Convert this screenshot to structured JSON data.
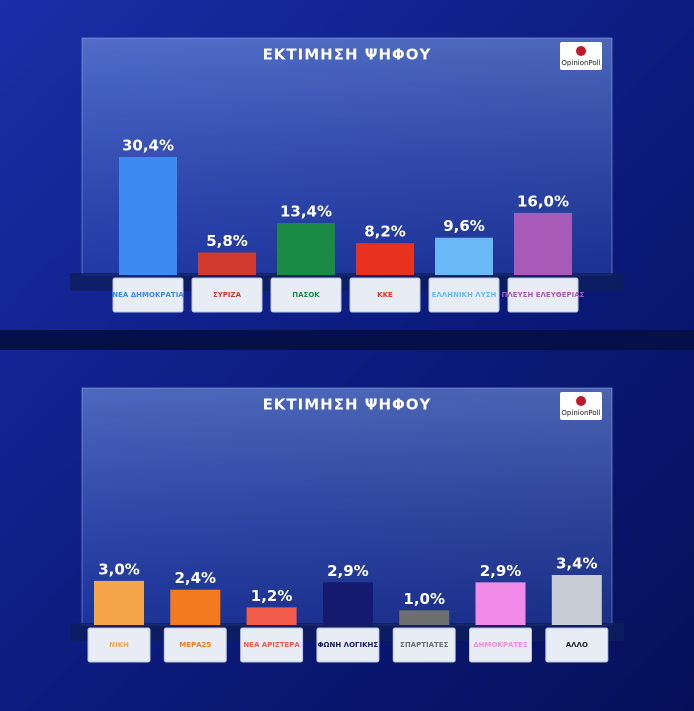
{
  "chart_data": [
    {
      "type": "bar",
      "title": "ΕΚΤΙΜΗΣΗ ΨΗΦΟΥ",
      "source": "OpinionPoll",
      "categories": [
        "ΝΕΑ ΔΗΜΟΚΡΑΤΙΑ",
        "ΣΥΡΙΖΑ",
        "ΠΑΣΟΚ",
        "ΚΚΕ",
        "ΕΛΛΗΝΙΚΗ ΛΥΣΗ",
        "ΠΛΕΥΣΗ ΕΛΕΥΘΕΡΙΑΣ"
      ],
      "values": [
        30.4,
        5.8,
        13.4,
        8.2,
        9.6,
        16.0
      ],
      "value_labels": [
        "30,4%",
        "5,8%",
        "13,4%",
        "8,2%",
        "9,6%",
        "16,0%"
      ],
      "colors": [
        "#3d8bf2",
        "#d23a2e",
        "#1a8a45",
        "#e8321f",
        "#6ab8f5",
        "#a85ab8"
      ]
    },
    {
      "type": "bar",
      "title": "ΕΚΤΙΜΗΣΗ ΨΗΦΟΥ",
      "source": "OpinionPoll",
      "categories": [
        "ΝΙΚΗ",
        "ΜΕΡΑ25",
        "ΝΕΑ ΑΡΙΣΤΕΡΑ",
        "ΦΩΝΗ ΛΟΓΙΚΗΣ",
        "ΣΠΑΡΤΙΑΤΕΣ",
        "ΔΗΜΟΚΡΑΤΕΣ",
        "ΑΛΛΟ"
      ],
      "values": [
        3.0,
        2.4,
        1.2,
        2.9,
        1.0,
        2.9,
        3.4
      ],
      "value_labels": [
        "3,0%",
        "2,4%",
        "1,2%",
        "2,9%",
        "1,0%",
        "2,9%",
        "3,4%"
      ],
      "colors": [
        "#f7a54a",
        "#f47a20",
        "#f25a4a",
        "#141a6e",
        "#6e6e6e",
        "#f08ce8",
        "#c8ccd4"
      ]
    }
  ]
}
